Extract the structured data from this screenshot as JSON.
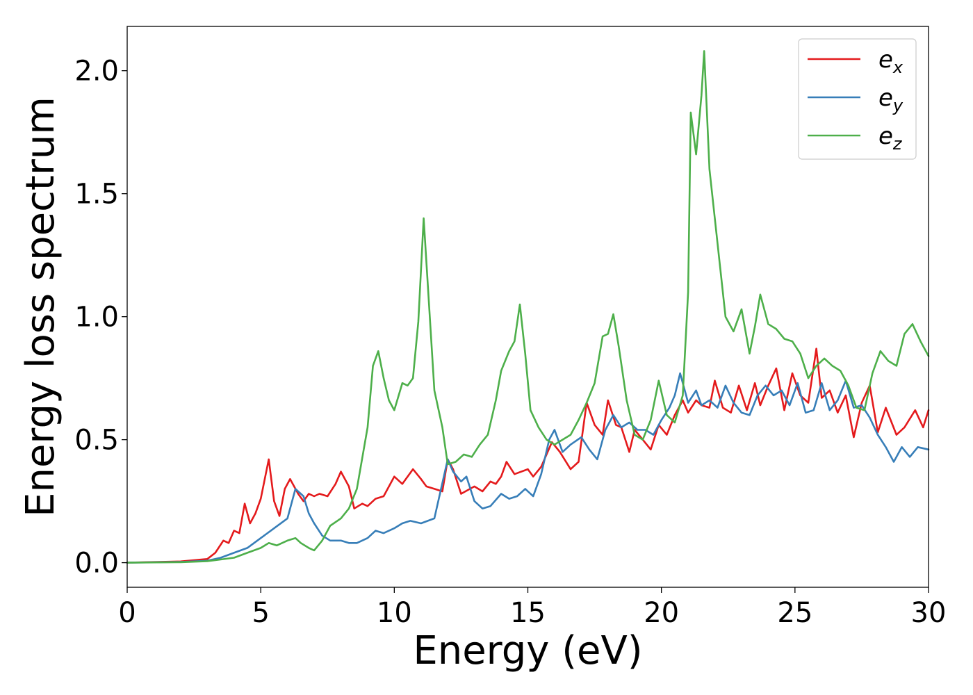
{
  "chart_data": {
    "type": "line",
    "xlabel": "Energy (eV)",
    "ylabel": "Energy loss spectrum",
    "xlim": [
      0,
      30
    ],
    "ylim": [
      -0.1,
      2.18
    ],
    "xticks": [
      0,
      5,
      10,
      15,
      20,
      25,
      30
    ],
    "yticks": [
      0.0,
      0.5,
      1.0,
      1.5,
      2.0
    ],
    "xtick_labels": [
      "0",
      "5",
      "10",
      "15",
      "20",
      "25",
      "30"
    ],
    "ytick_labels": [
      "0.0",
      "0.5",
      "1.0",
      "1.5",
      "2.0"
    ],
    "grid": false,
    "legend_position": "top-right",
    "series": [
      {
        "name": "e",
        "subscript": "x",
        "color": "#e41a1c",
        "x": [
          0,
          2,
          3,
          3.3,
          3.6,
          3.8,
          4.0,
          4.2,
          4.4,
          4.6,
          4.8,
          5.0,
          5.3,
          5.5,
          5.7,
          5.9,
          6.1,
          6.4,
          6.6,
          6.8,
          7.0,
          7.2,
          7.5,
          7.8,
          8.0,
          8.3,
          8.5,
          8.8,
          9.0,
          9.3,
          9.6,
          10.0,
          10.3,
          10.7,
          11.0,
          11.2,
          11.5,
          11.8,
          12.0,
          12.2,
          12.5,
          13.0,
          13.3,
          13.6,
          13.8,
          14.0,
          14.2,
          14.5,
          15.0,
          15.2,
          15.5,
          15.9,
          16.2,
          16.6,
          16.9,
          17.2,
          17.5,
          17.8,
          18.0,
          18.3,
          18.5,
          18.8,
          19.0,
          19.3,
          19.6,
          19.9,
          20.2,
          20.5,
          20.8,
          21.0,
          21.3,
          21.5,
          21.8,
          22.0,
          22.3,
          22.6,
          22.9,
          23.2,
          23.5,
          23.7,
          24.0,
          24.3,
          24.6,
          24.9,
          25.2,
          25.5,
          25.8,
          26.0,
          26.3,
          26.6,
          26.9,
          27.2,
          27.5,
          27.8,
          28.1,
          28.4,
          28.8,
          29.1,
          29.5,
          29.8,
          30.0
        ],
        "y": [
          0.0,
          0.005,
          0.015,
          0.04,
          0.09,
          0.08,
          0.13,
          0.12,
          0.24,
          0.16,
          0.2,
          0.26,
          0.42,
          0.25,
          0.19,
          0.3,
          0.34,
          0.28,
          0.25,
          0.28,
          0.27,
          0.28,
          0.27,
          0.32,
          0.37,
          0.31,
          0.22,
          0.24,
          0.23,
          0.26,
          0.27,
          0.35,
          0.32,
          0.38,
          0.34,
          0.31,
          0.3,
          0.29,
          0.42,
          0.38,
          0.28,
          0.31,
          0.29,
          0.33,
          0.32,
          0.35,
          0.41,
          0.36,
          0.38,
          0.35,
          0.39,
          0.49,
          0.45,
          0.38,
          0.41,
          0.65,
          0.56,
          0.52,
          0.66,
          0.56,
          0.55,
          0.45,
          0.54,
          0.5,
          0.46,
          0.56,
          0.52,
          0.6,
          0.66,
          0.61,
          0.66,
          0.64,
          0.63,
          0.74,
          0.63,
          0.61,
          0.72,
          0.62,
          0.73,
          0.64,
          0.72,
          0.79,
          0.62,
          0.77,
          0.68,
          0.65,
          0.87,
          0.67,
          0.7,
          0.61,
          0.68,
          0.51,
          0.65,
          0.72,
          0.53,
          0.63,
          0.52,
          0.55,
          0.62,
          0.55,
          0.62
        ]
      },
      {
        "name": "e",
        "subscript": "y",
        "color": "#377eb8",
        "x": [
          0,
          2,
          3,
          3.5,
          4.0,
          4.5,
          5.0,
          5.5,
          6.0,
          6.3,
          6.6,
          6.8,
          7.0,
          7.3,
          7.6,
          8.0,
          8.3,
          8.6,
          9.0,
          9.3,
          9.6,
          10.0,
          10.3,
          10.6,
          11.0,
          11.5,
          12.0,
          12.2,
          12.5,
          12.7,
          13.0,
          13.3,
          13.6,
          14.0,
          14.3,
          14.6,
          14.9,
          15.2,
          15.5,
          15.8,
          16.0,
          16.3,
          16.6,
          17.0,
          17.3,
          17.6,
          17.9,
          18.2,
          18.5,
          18.8,
          19.1,
          19.4,
          19.7,
          20.0,
          20.3,
          20.5,
          20.7,
          21.0,
          21.3,
          21.5,
          21.8,
          22.1,
          22.4,
          22.7,
          23.0,
          23.3,
          23.6,
          23.9,
          24.2,
          24.5,
          24.8,
          25.1,
          25.4,
          25.7,
          26.0,
          26.3,
          26.6,
          26.9,
          27.2,
          27.5,
          27.8,
          28.1,
          28.4,
          28.7,
          29.0,
          29.3,
          29.6,
          30.0
        ],
        "y": [
          0.0,
          0.003,
          0.008,
          0.02,
          0.04,
          0.06,
          0.1,
          0.14,
          0.18,
          0.3,
          0.27,
          0.2,
          0.16,
          0.11,
          0.09,
          0.09,
          0.08,
          0.08,
          0.1,
          0.13,
          0.12,
          0.14,
          0.16,
          0.17,
          0.16,
          0.18,
          0.42,
          0.37,
          0.33,
          0.35,
          0.25,
          0.22,
          0.23,
          0.28,
          0.26,
          0.27,
          0.3,
          0.27,
          0.36,
          0.5,
          0.54,
          0.45,
          0.48,
          0.51,
          0.46,
          0.42,
          0.54,
          0.6,
          0.55,
          0.57,
          0.54,
          0.54,
          0.52,
          0.58,
          0.63,
          0.68,
          0.77,
          0.65,
          0.7,
          0.64,
          0.66,
          0.63,
          0.72,
          0.65,
          0.61,
          0.6,
          0.68,
          0.72,
          0.68,
          0.7,
          0.64,
          0.73,
          0.61,
          0.62,
          0.73,
          0.62,
          0.66,
          0.74,
          0.63,
          0.64,
          0.59,
          0.52,
          0.47,
          0.41,
          0.47,
          0.43,
          0.47,
          0.46
        ]
      },
      {
        "name": "e",
        "subscript": "z",
        "color": "#4daf4a",
        "x": [
          0,
          2,
          3,
          4.0,
          4.5,
          5.0,
          5.3,
          5.6,
          6.0,
          6.3,
          6.5,
          6.8,
          7.0,
          7.3,
          7.6,
          8.0,
          8.3,
          8.6,
          9.0,
          9.2,
          9.4,
          9.6,
          9.8,
          10.0,
          10.3,
          10.5,
          10.7,
          10.9,
          11.1,
          11.3,
          11.5,
          11.8,
          12.0,
          12.3,
          12.6,
          12.9,
          13.2,
          13.5,
          13.8,
          14.0,
          14.3,
          14.5,
          14.7,
          14.9,
          15.1,
          15.4,
          15.7,
          16.0,
          16.3,
          16.6,
          16.9,
          17.2,
          17.5,
          17.8,
          18.0,
          18.2,
          18.4,
          18.7,
          19.0,
          19.3,
          19.6,
          19.9,
          20.2,
          20.5,
          20.8,
          21.0,
          21.1,
          21.3,
          21.5,
          21.6,
          21.8,
          22.0,
          22.2,
          22.4,
          22.7,
          23.0,
          23.3,
          23.5,
          23.7,
          24.0,
          24.3,
          24.6,
          24.9,
          25.2,
          25.5,
          25.8,
          26.1,
          26.4,
          26.7,
          27.0,
          27.3,
          27.6,
          27.9,
          28.2,
          28.5,
          28.8,
          29.1,
          29.4,
          29.7,
          30.0
        ],
        "y": [
          0.0,
          0.002,
          0.006,
          0.02,
          0.04,
          0.06,
          0.08,
          0.07,
          0.09,
          0.1,
          0.08,
          0.06,
          0.05,
          0.09,
          0.15,
          0.18,
          0.22,
          0.3,
          0.55,
          0.8,
          0.86,
          0.75,
          0.66,
          0.62,
          0.73,
          0.72,
          0.75,
          0.98,
          1.4,
          1.05,
          0.7,
          0.55,
          0.4,
          0.41,
          0.44,
          0.43,
          0.48,
          0.52,
          0.66,
          0.78,
          0.86,
          0.9,
          1.05,
          0.85,
          0.62,
          0.55,
          0.5,
          0.48,
          0.5,
          0.52,
          0.58,
          0.65,
          0.73,
          0.92,
          0.93,
          1.01,
          0.88,
          0.66,
          0.52,
          0.5,
          0.58,
          0.74,
          0.6,
          0.57,
          0.68,
          1.1,
          1.83,
          1.66,
          1.9,
          2.08,
          1.6,
          1.4,
          1.2,
          1.0,
          0.94,
          1.03,
          0.85,
          0.96,
          1.09,
          0.97,
          0.95,
          0.91,
          0.9,
          0.85,
          0.75,
          0.8,
          0.83,
          0.8,
          0.78,
          0.72,
          0.63,
          0.62,
          0.77,
          0.86,
          0.82,
          0.8,
          0.93,
          0.97,
          0.9,
          0.84
        ]
      }
    ]
  }
}
